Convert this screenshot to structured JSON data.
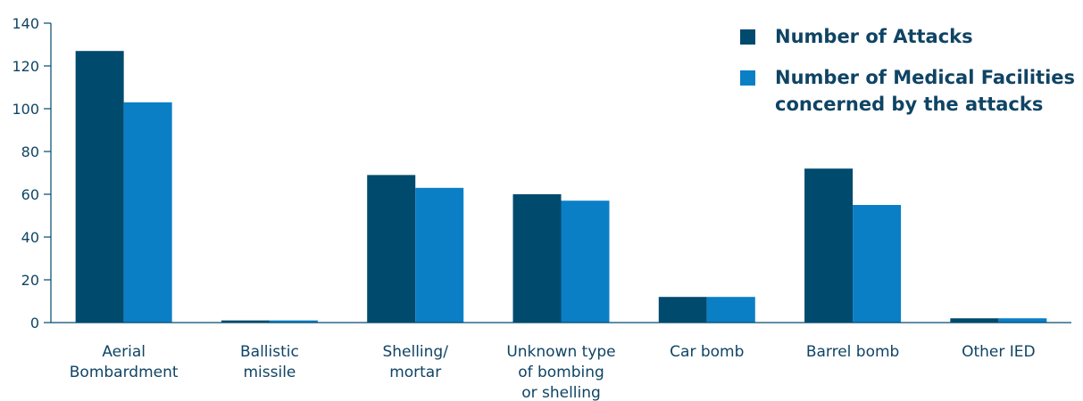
{
  "chart_data": {
    "type": "bar",
    "title": "",
    "xlabel": "",
    "ylabel": "",
    "ylim": [
      0,
      140
    ],
    "yticks": [
      0,
      20,
      40,
      60,
      80,
      100,
      120,
      140
    ],
    "grid": false,
    "legend_position": "top-right",
    "categories": [
      [
        "Aerial",
        "Bombardment"
      ],
      [
        "Ballistic",
        "missile"
      ],
      [
        "Shelling/",
        "mortar"
      ],
      [
        "Unknown type",
        "of bombing",
        "or shelling"
      ],
      [
        "Car bomb"
      ],
      [
        "Barrel bomb"
      ],
      [
        "Other IED"
      ]
    ],
    "series": [
      {
        "name": "Number of Attacks",
        "color": "#004a6e",
        "values": [
          127,
          1,
          69,
          60,
          12,
          72,
          2
        ]
      },
      {
        "name": [
          "Number of Medical Facilities",
          "concerned by the attacks"
        ],
        "color": "#0a7fc6",
        "values": [
          103,
          1,
          63,
          57,
          12,
          55,
          2
        ]
      }
    ]
  }
}
